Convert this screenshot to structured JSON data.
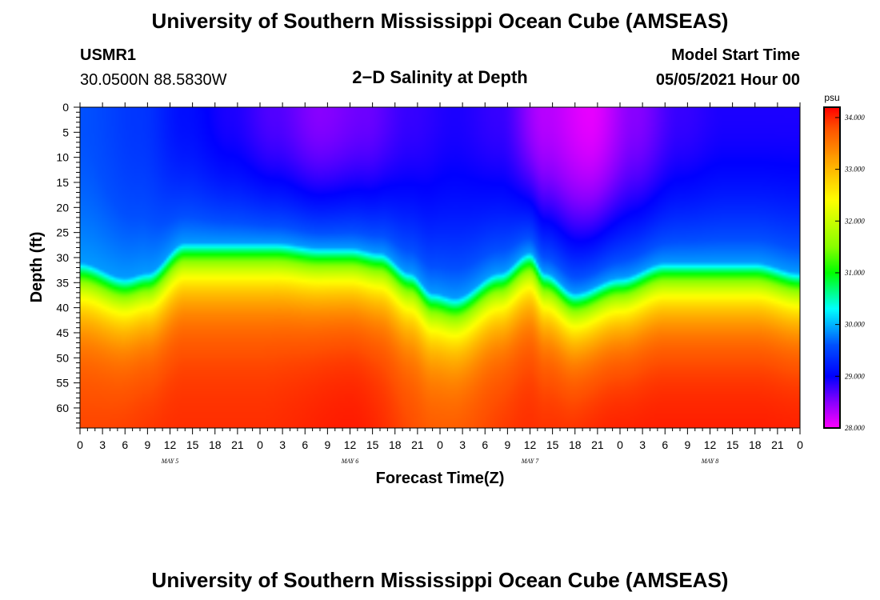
{
  "chart_data": {
    "type": "heatmap",
    "title": "University of Southern Mississippi Ocean Cube (AMSEAS)",
    "footer_title": "University of Southern Mississippi Ocean Cube (AMSEAS)",
    "station": "USMR1",
    "location": "30.0500N  88.5830W",
    "subtitle": "2−D Salinity at Depth",
    "model_start_label": "Model Start Time",
    "model_start_value": "05/05/2021 Hour 00",
    "xlabel": "Forecast Time(Z)",
    "ylabel": "Depth (ft)",
    "x_ticks": [
      "0",
      "3",
      "6",
      "9",
      "12",
      "15",
      "18",
      "21",
      "0",
      "3",
      "6",
      "9",
      "12",
      "15",
      "18",
      "21",
      "0",
      "3",
      "6",
      "9",
      "12",
      "15",
      "18",
      "21",
      "0",
      "3",
      "6",
      "9",
      "12",
      "15",
      "18",
      "21",
      "0"
    ],
    "x_range_hours": [
      0,
      96
    ],
    "day_labels": [
      {
        "label": "MAY  5",
        "hour": 12
      },
      {
        "label": "MAY  6",
        "hour": 36
      },
      {
        "label": "MAY  7",
        "hour": 60
      },
      {
        "label": "MAY  8",
        "hour": 84
      }
    ],
    "y_ticks": [
      0,
      5,
      10,
      15,
      20,
      25,
      30,
      35,
      40,
      45,
      50,
      55,
      60
    ],
    "y_tick_labels": [
      "0",
      "5",
      "10",
      "15",
      "20",
      "25",
      "30",
      "35",
      "40",
      "45",
      "50",
      "55",
      "60"
    ],
    "y_range_ft": [
      0,
      64
    ],
    "colorbar": {
      "unit": "psu",
      "min": 28.0,
      "max": 34.2,
      "tick_values": [
        34.0,
        33.0,
        32.0,
        31.0,
        30.0,
        29.0,
        28.0
      ],
      "tick_labels": [
        "34.000",
        "33.000",
        "32.000",
        "31.000",
        "30.000",
        "29.000",
        "28.000"
      ],
      "colors": [
        "#ff00ff",
        "#8800ff",
        "#0000ff",
        "#0050ff",
        "#00ffff",
        "#00ff00",
        "#88ff00",
        "#ffff00",
        "#ffa000",
        "#ff5000",
        "#ff0000"
      ],
      "color_stops": [
        28.0,
        28.5,
        29.0,
        29.6,
        30.3,
        31.0,
        31.5,
        32.4,
        33.2,
        33.8,
        34.2
      ]
    },
    "surface_salinity": {
      "hours": [
        0,
        8,
        14,
        20,
        26,
        32,
        38,
        44,
        50,
        56,
        62,
        68,
        74,
        80,
        86,
        92,
        96
      ],
      "values": [
        29.6,
        29.4,
        29.1,
        28.9,
        28.7,
        28.5,
        28.6,
        28.8,
        28.9,
        28.8,
        28.3,
        28.1,
        28.5,
        28.8,
        28.9,
        28.9,
        28.9
      ]
    },
    "halocline_depth_ft": {
      "hours": [
        0,
        6,
        9,
        14,
        20,
        26,
        32,
        36,
        40,
        44,
        47,
        50,
        56,
        60,
        62,
        66,
        72,
        78,
        84,
        90,
        96
      ],
      "values": [
        31,
        34,
        33,
        27,
        27,
        27,
        28,
        28,
        29,
        33,
        37,
        38,
        33,
        29,
        33,
        37,
        34,
        31,
        31,
        31,
        33
      ]
    },
    "bottom_salinity": {
      "hours": [
        0,
        12,
        24,
        36,
        48,
        60,
        72,
        84,
        96
      ],
      "values": [
        33.9,
        34.0,
        34.0,
        34.1,
        33.8,
        34.0,
        34.1,
        34.1,
        34.1
      ]
    }
  }
}
